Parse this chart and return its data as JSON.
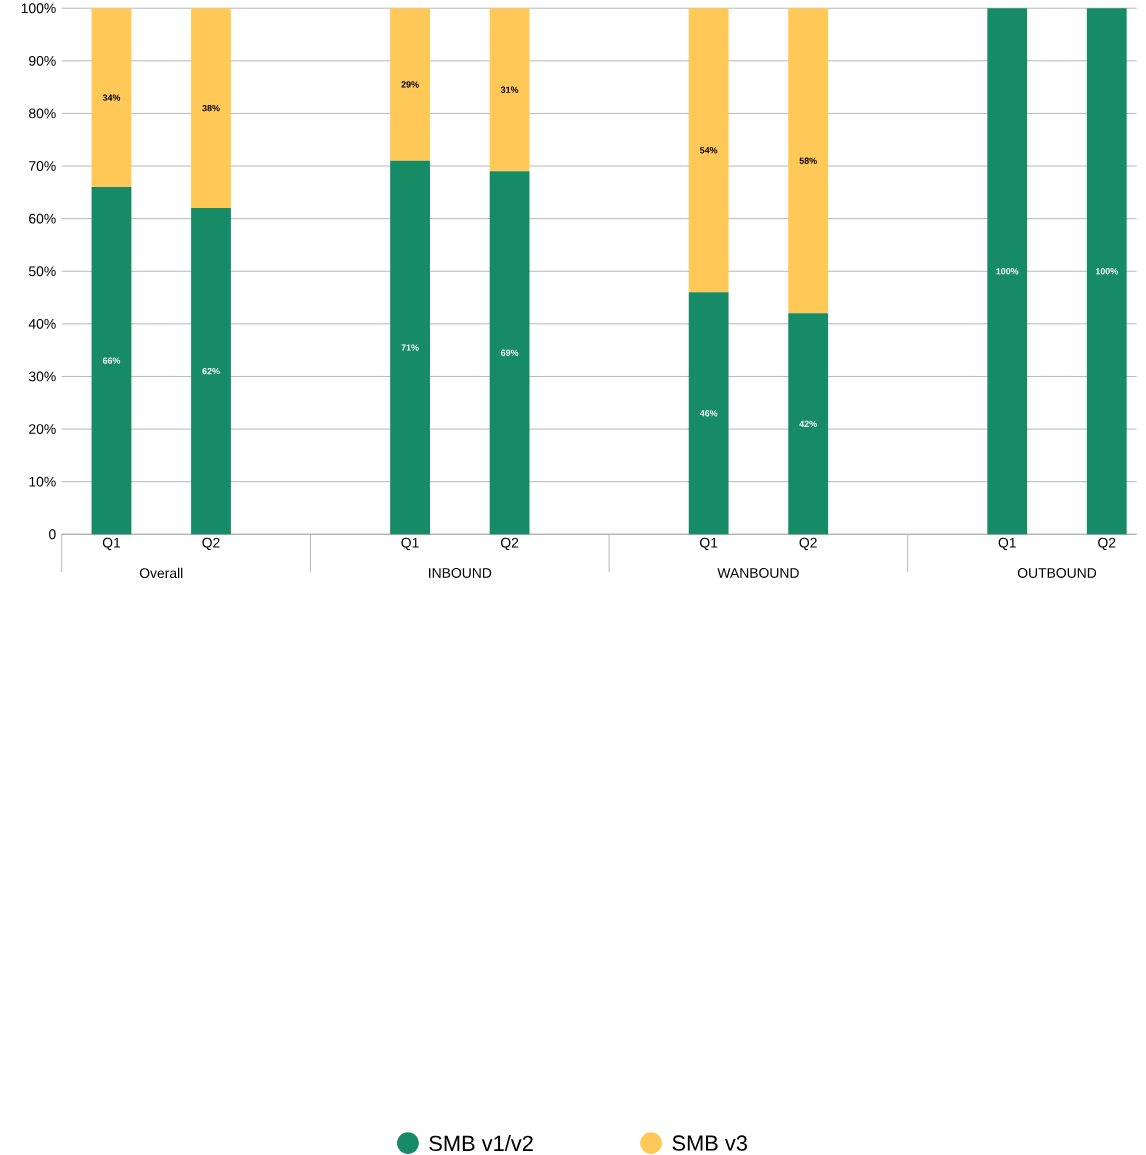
{
  "chart_data": {
    "type": "bar",
    "stacked": true,
    "categories": [
      "Q1",
      "Q2",
      null,
      "Q1",
      "Q2",
      null,
      "Q1",
      "Q2",
      null,
      "Q1",
      "Q2"
    ],
    "series": [
      {
        "name": "SMB v1/v2",
        "color": "#178a66",
        "values": [
          66,
          62,
          null,
          71,
          69,
          null,
          46,
          42,
          null,
          100,
          100
        ],
        "value_labels": [
          "66%",
          "62%",
          null,
          "71%",
          "69%",
          null,
          "46%",
          "42%",
          null,
          "100%",
          "100%"
        ]
      },
      {
        "name": "SMB v3",
        "color": "#ffc857",
        "values": [
          34,
          38,
          null,
          29,
          31,
          null,
          54,
          58,
          null,
          0,
          0
        ],
        "value_labels": [
          "34%",
          "38%",
          null,
          "29%",
          "31%",
          null,
          "54%",
          "58%",
          null,
          null,
          null
        ]
      }
    ],
    "annotations": [
      "Overall",
      "INBOUND",
      "WANBOUND",
      "OUTBOUND"
    ],
    "ylim": [
      0,
      100
    ],
    "yticks": [
      {
        "value": 0,
        "label": "0"
      },
      {
        "value": 10,
        "label": "10%"
      },
      {
        "value": 20,
        "label": "20%"
      },
      {
        "value": 30,
        "label": "30%"
      },
      {
        "value": 40,
        "label": "40%"
      },
      {
        "value": 50,
        "label": "50%"
      },
      {
        "value": 60,
        "label": "60%"
      },
      {
        "value": 70,
        "label": "70%"
      },
      {
        "value": 80,
        "label": "80%"
      },
      {
        "value": 90,
        "label": "90%"
      },
      {
        "value": 100,
        "label": "100%"
      }
    ],
    "grid": "y",
    "legend": "bottom"
  }
}
